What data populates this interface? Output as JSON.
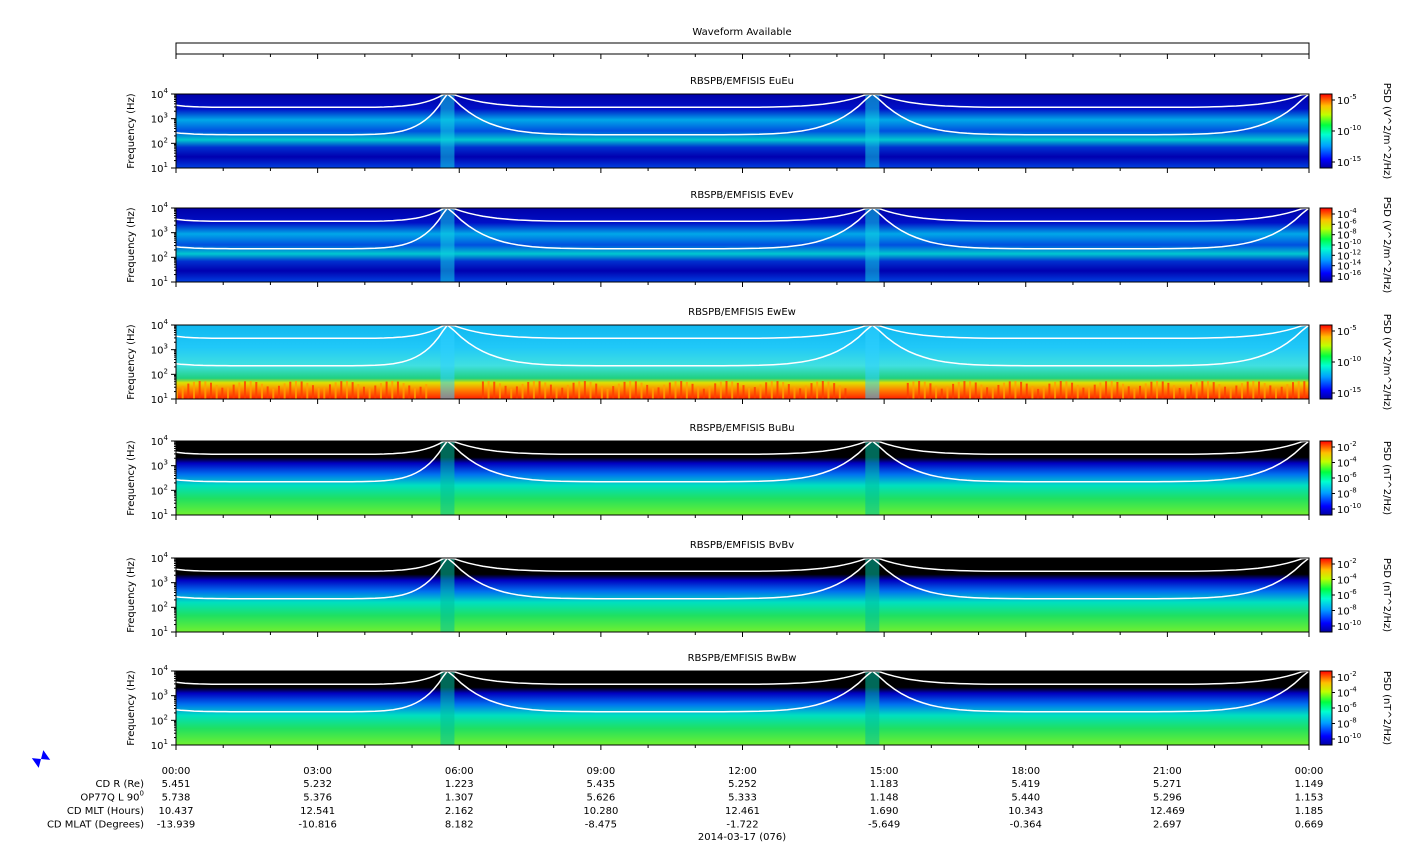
{
  "waveform_title": "Waveform Available",
  "date_label": "2014-03-17 (076)",
  "colors": {
    "background_spectrogram": "#0000a8",
    "magnetic_background": "#000000",
    "curve": "#ffffff"
  },
  "chart_data": [
    {
      "type": "heatmap",
      "title": "RBSPB/EMFISIS  EuEu",
      "ylabel": "Frequency (Hz)",
      "y_scale": "log",
      "ylim": [
        10,
        10000
      ],
      "yticks": [
        {
          "base": "10",
          "exp": "4"
        },
        {
          "base": "10",
          "exp": "3"
        },
        {
          "base": "10",
          "exp": "2"
        },
        {
          "base": "10",
          "exp": "1"
        }
      ],
      "colorbar": {
        "label": "PSD (V^2/m^2/Hz)",
        "scale": "log",
        "ticks": [
          {
            "base": "10",
            "exp": "-5"
          },
          {
            "base": "10",
            "exp": "-10"
          },
          {
            "base": "10",
            "exp": "-15"
          }
        ]
      },
      "background": "efield",
      "x_range_hours": [
        0,
        24
      ]
    },
    {
      "type": "heatmap",
      "title": "RBSPB/EMFISIS  EvEv",
      "ylabel": "Frequency (Hz)",
      "y_scale": "log",
      "ylim": [
        10,
        10000
      ],
      "yticks": [
        {
          "base": "10",
          "exp": "4"
        },
        {
          "base": "10",
          "exp": "3"
        },
        {
          "base": "10",
          "exp": "2"
        },
        {
          "base": "10",
          "exp": "1"
        }
      ],
      "colorbar": {
        "label": "PSD (V^2/m^2/Hz)",
        "scale": "log",
        "ticks": [
          {
            "base": "10",
            "exp": "-4"
          },
          {
            "base": "10",
            "exp": "-6"
          },
          {
            "base": "10",
            "exp": "-8"
          },
          {
            "base": "10",
            "exp": "-10"
          },
          {
            "base": "10",
            "exp": "-12"
          },
          {
            "base": "10",
            "exp": "-14"
          },
          {
            "base": "10",
            "exp": "-16"
          }
        ]
      },
      "background": "efield",
      "x_range_hours": [
        0,
        24
      ]
    },
    {
      "type": "heatmap",
      "title": "RBSPB/EMFISIS  EwEw",
      "ylabel": "Frequency (Hz)",
      "y_scale": "log",
      "ylim": [
        10,
        10000
      ],
      "yticks": [
        {
          "base": "10",
          "exp": "4"
        },
        {
          "base": "10",
          "exp": "3"
        },
        {
          "base": "10",
          "exp": "2"
        },
        {
          "base": "10",
          "exp": "1"
        }
      ],
      "colorbar": {
        "label": "PSD (V^2/m^2/Hz)",
        "scale": "log",
        "ticks": [
          {
            "base": "10",
            "exp": "-5"
          },
          {
            "base": "10",
            "exp": "-10"
          },
          {
            "base": "10",
            "exp": "-15"
          }
        ]
      },
      "background": "ew",
      "x_range_hours": [
        0,
        24
      ]
    },
    {
      "type": "heatmap",
      "title": "RBSPB/EMFISIS  BuBu",
      "ylabel": "Frequency (Hz)",
      "y_scale": "log",
      "ylim": [
        10,
        10000
      ],
      "yticks": [
        {
          "base": "10",
          "exp": "4"
        },
        {
          "base": "10",
          "exp": "3"
        },
        {
          "base": "10",
          "exp": "2"
        },
        {
          "base": "10",
          "exp": "1"
        }
      ],
      "colorbar": {
        "label": "PSD (nT^2/Hz)",
        "scale": "log",
        "ticks": [
          {
            "base": "10",
            "exp": "-2"
          },
          {
            "base": "10",
            "exp": "-4"
          },
          {
            "base": "10",
            "exp": "-6"
          },
          {
            "base": "10",
            "exp": "-8"
          },
          {
            "base": "10",
            "exp": "-10"
          }
        ]
      },
      "background": "bfield",
      "x_range_hours": [
        0,
        24
      ]
    },
    {
      "type": "heatmap",
      "title": "RBSPB/EMFISIS  BvBv",
      "ylabel": "Frequency (Hz)",
      "y_scale": "log",
      "ylim": [
        10,
        10000
      ],
      "yticks": [
        {
          "base": "10",
          "exp": "4"
        },
        {
          "base": "10",
          "exp": "3"
        },
        {
          "base": "10",
          "exp": "2"
        },
        {
          "base": "10",
          "exp": "1"
        }
      ],
      "colorbar": {
        "label": "PSD (nT^2/Hz)",
        "scale": "log",
        "ticks": [
          {
            "base": "10",
            "exp": "-2"
          },
          {
            "base": "10",
            "exp": "-4"
          },
          {
            "base": "10",
            "exp": "-6"
          },
          {
            "base": "10",
            "exp": "-8"
          },
          {
            "base": "10",
            "exp": "-10"
          }
        ]
      },
      "background": "bfield",
      "x_range_hours": [
        0,
        24
      ]
    },
    {
      "type": "heatmap",
      "title": "RBSPB/EMFISIS  BwBw",
      "ylabel": "Frequency (Hz)",
      "y_scale": "log",
      "ylim": [
        10,
        10000
      ],
      "yticks": [
        {
          "base": "10",
          "exp": "4"
        },
        {
          "base": "10",
          "exp": "3"
        },
        {
          "base": "10",
          "exp": "2"
        },
        {
          "base": "10",
          "exp": "1"
        }
      ],
      "colorbar": {
        "label": "PSD (nT^2/Hz)",
        "scale": "log",
        "ticks": [
          {
            "base": "10",
            "exp": "-2"
          },
          {
            "base": "10",
            "exp": "-4"
          },
          {
            "base": "10",
            "exp": "-6"
          },
          {
            "base": "10",
            "exp": "-8"
          },
          {
            "base": "10",
            "exp": "-10"
          }
        ]
      },
      "background": "bfield",
      "x_range_hours": [
        0,
        24
      ]
    }
  ],
  "time_axis": {
    "labels": [
      "00:00",
      "03:00",
      "06:00",
      "09:00",
      "12:00",
      "15:00",
      "18:00",
      "21:00",
      "00:00"
    ],
    "label_hours": [
      0,
      3,
      6,
      9,
      12,
      15,
      18,
      21,
      24
    ],
    "minor_tick_hours": [
      1,
      2,
      4,
      5,
      7,
      8,
      10,
      11,
      13,
      14,
      16,
      17,
      19,
      20,
      22,
      23
    ]
  },
  "ephemeris": {
    "rows": [
      {
        "label": "CD R (Re)",
        "values": [
          "5.451",
          "5.232",
          "1.223",
          "5.435",
          "5.252",
          "1.183",
          "5.419",
          "5.271",
          "1.149"
        ]
      },
      {
        "label": "OP77Q L 90",
        "label_sup": "0",
        "values": [
          "5.738",
          "5.376",
          "1.307",
          "5.626",
          "5.333",
          "1.148",
          "5.440",
          "5.296",
          "1.153"
        ]
      },
      {
        "label": "CD MLT (Hours)",
        "values": [
          "10.437",
          "12.541",
          "2.162",
          "10.280",
          "12.461",
          "1.690",
          "10.343",
          "12.469",
          "1.185"
        ]
      },
      {
        "label": "CD MLAT (Degrees)",
        "values": [
          "-13.939",
          "-10.816",
          "8.182",
          "-8.475",
          "-1.722",
          "-5.649",
          "-0.364",
          "2.697",
          "0.669"
        ]
      }
    ]
  },
  "icon": {
    "name": "bowtie-icon",
    "color": "#0000ff"
  }
}
